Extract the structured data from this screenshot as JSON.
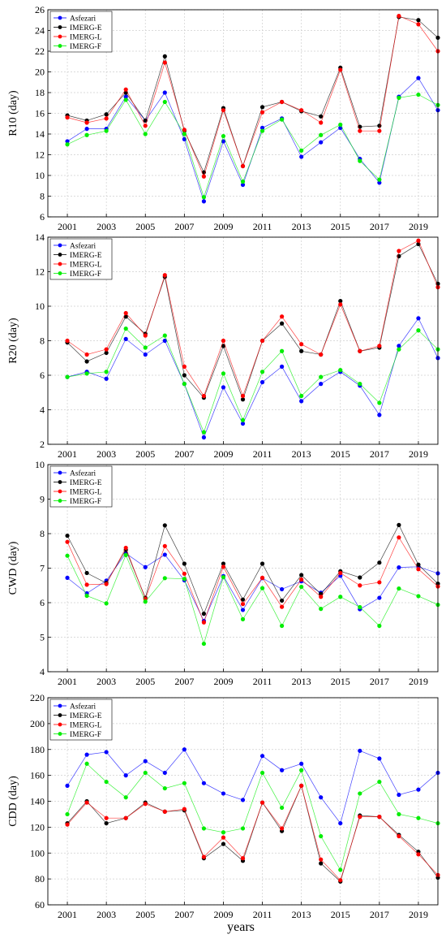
{
  "colors": {
    "Asfezari": "#0000ff",
    "IMERG-E": "#000000",
    "IMERG-L": "#ff0000",
    "IMERG-F": "#00ee00"
  },
  "xlabel": "years",
  "chart_data": [
    {
      "type": "line",
      "ylabel": "R10 (day)",
      "ylim": [
        6,
        26
      ],
      "yticks": [
        6,
        8,
        10,
        12,
        14,
        16,
        18,
        20,
        22,
        24,
        26
      ],
      "xlim": [
        2000,
        2020
      ],
      "xticks": [
        2001,
        2003,
        2005,
        2007,
        2009,
        2011,
        2013,
        2015,
        2017,
        2019
      ],
      "grid": true,
      "legend": "top-left",
      "x": [
        2001,
        2002,
        2003,
        2004,
        2005,
        2006,
        2007,
        2008,
        2009,
        2010,
        2011,
        2012,
        2013,
        2014,
        2015,
        2016,
        2017,
        2018,
        2019,
        2020
      ],
      "series": [
        {
          "name": "Asfezari",
          "values": [
            13.3,
            14.5,
            14.5,
            17.6,
            15.3,
            18.0,
            13.5,
            7.5,
            13.3,
            9.1,
            14.6,
            15.5,
            11.8,
            13.2,
            14.6,
            11.6,
            9.3,
            17.6,
            19.4,
            16.3
          ]
        },
        {
          "name": "IMERG-E",
          "values": [
            15.8,
            15.3,
            15.9,
            18.0,
            15.3,
            21.5,
            14.3,
            10.3,
            16.5,
            10.9,
            16.6,
            17.1,
            16.2,
            15.7,
            20.4,
            14.7,
            14.8,
            25.3,
            25.0,
            23.3
          ]
        },
        {
          "name": "IMERG-L",
          "values": [
            15.6,
            15.1,
            15.5,
            18.3,
            14.8,
            20.9,
            14.4,
            9.9,
            16.3,
            10.9,
            16.1,
            17.1,
            16.3,
            15.1,
            20.2,
            14.3,
            14.3,
            25.4,
            24.6,
            22.0
          ]
        },
        {
          "name": "IMERG-F",
          "values": [
            13.0,
            13.9,
            14.3,
            17.3,
            14.0,
            17.1,
            14.0,
            7.9,
            13.8,
            9.4,
            14.3,
            15.4,
            12.4,
            13.9,
            14.9,
            11.4,
            9.6,
            17.5,
            17.8,
            16.8
          ]
        }
      ]
    },
    {
      "type": "line",
      "ylabel": "R20 (day)",
      "ylim": [
        2,
        14
      ],
      "yticks": [
        2,
        4,
        6,
        8,
        10,
        12,
        14
      ],
      "xlim": [
        2000,
        2020
      ],
      "xticks": [
        2001,
        2003,
        2005,
        2007,
        2009,
        2011,
        2013,
        2015,
        2017,
        2019
      ],
      "grid": true,
      "legend": "top-left",
      "x": [
        2001,
        2002,
        2003,
        2004,
        2005,
        2006,
        2007,
        2008,
        2009,
        2010,
        2011,
        2012,
        2013,
        2014,
        2015,
        2016,
        2017,
        2018,
        2019,
        2020
      ],
      "series": [
        {
          "name": "Asfezari",
          "values": [
            5.9,
            6.2,
            5.8,
            8.1,
            7.2,
            8.0,
            5.5,
            2.4,
            5.3,
            3.2,
            5.6,
            6.5,
            4.5,
            5.5,
            6.2,
            5.4,
            3.7,
            7.7,
            9.3,
            7.0
          ]
        },
        {
          "name": "IMERG-E",
          "values": [
            7.9,
            6.8,
            7.3,
            9.4,
            8.4,
            11.7,
            6.0,
            4.7,
            7.7,
            4.6,
            8.0,
            9.0,
            7.4,
            7.2,
            10.3,
            7.4,
            7.6,
            12.9,
            13.6,
            11.3
          ]
        },
        {
          "name": "IMERG-L",
          "values": [
            8.0,
            7.2,
            7.5,
            9.6,
            8.3,
            11.8,
            6.5,
            4.8,
            8.0,
            4.8,
            8.0,
            9.4,
            7.8,
            7.2,
            10.1,
            7.4,
            7.7,
            13.2,
            13.8,
            11.1
          ]
        },
        {
          "name": "IMERG-F",
          "values": [
            5.9,
            6.1,
            6.2,
            8.7,
            7.6,
            8.3,
            5.5,
            2.7,
            6.1,
            3.4,
            6.2,
            7.4,
            4.8,
            5.9,
            6.3,
            5.5,
            4.4,
            7.5,
            8.6,
            7.5
          ]
        }
      ]
    },
    {
      "type": "line",
      "ylabel": "CWD (day)",
      "ylim": [
        4,
        10
      ],
      "yticks": [
        4,
        5,
        6,
        7,
        8,
        9,
        10
      ],
      "xlim": [
        2000,
        2020
      ],
      "xticks": [
        2001,
        2003,
        2005,
        2007,
        2009,
        2011,
        2013,
        2015,
        2017,
        2019
      ],
      "grid": true,
      "legend": "top-left",
      "x": [
        2001,
        2002,
        2003,
        2004,
        2005,
        2006,
        2007,
        2008,
        2009,
        2010,
        2011,
        2012,
        2013,
        2014,
        2015,
        2016,
        2017,
        2018,
        2019,
        2020
      ],
      "series": [
        {
          "name": "Asfezari",
          "values": [
            6.72,
            6.27,
            6.64,
            7.43,
            7.03,
            7.39,
            6.65,
            5.47,
            6.77,
            5.79,
            6.71,
            6.39,
            6.62,
            6.29,
            6.78,
            5.81,
            6.14,
            7.02,
            7.04,
            6.85
          ]
        },
        {
          "name": "IMERG-E",
          "values": [
            7.94,
            6.86,
            6.57,
            7.53,
            6.14,
            8.24,
            7.13,
            5.68,
            7.13,
            6.09,
            7.13,
            6.06,
            6.8,
            6.25,
            6.91,
            6.73,
            7.16,
            8.25,
            7.1,
            6.55
          ]
        },
        {
          "name": "IMERG-L",
          "values": [
            7.76,
            6.52,
            6.54,
            7.59,
            6.11,
            7.64,
            6.84,
            5.43,
            7.04,
            5.96,
            6.72,
            5.88,
            6.67,
            6.17,
            6.86,
            6.5,
            6.59,
            7.89,
            6.97,
            6.47
          ]
        },
        {
          "name": "IMERG-F",
          "values": [
            7.36,
            6.2,
            5.98,
            7.38,
            6.03,
            6.71,
            6.69,
            4.81,
            6.74,
            5.52,
            6.42,
            5.33,
            6.46,
            5.82,
            6.17,
            5.87,
            5.33,
            6.41,
            6.19,
            5.94
          ]
        }
      ]
    },
    {
      "type": "line",
      "ylabel": "CDD (day)",
      "ylim": [
        60,
        220
      ],
      "yticks": [
        60,
        80,
        100,
        120,
        140,
        160,
        180,
        200,
        220
      ],
      "xlim": [
        2000,
        2020
      ],
      "xticks": [
        2001,
        2003,
        2005,
        2007,
        2009,
        2011,
        2013,
        2015,
        2017,
        2019
      ],
      "grid": true,
      "legend": "top-left",
      "x": [
        2001,
        2002,
        2003,
        2004,
        2005,
        2006,
        2007,
        2008,
        2009,
        2010,
        2011,
        2012,
        2013,
        2014,
        2015,
        2016,
        2017,
        2018,
        2019,
        2020
      ],
      "series": [
        {
          "name": "Asfezari",
          "values": [
            152,
            176,
            178,
            160,
            171,
            162,
            180,
            154,
            146,
            141,
            175,
            164,
            169,
            143,
            123,
            179,
            173,
            145,
            149,
            162
          ]
        },
        {
          "name": "IMERG-E",
          "values": [
            123,
            140,
            123,
            127,
            139,
            132,
            133,
            96,
            107,
            94,
            139,
            117,
            152,
            92,
            78,
            129,
            128,
            114,
            101,
            81
          ]
        },
        {
          "name": "IMERG-L",
          "values": [
            122,
            139,
            127,
            127,
            138,
            132,
            134,
            97,
            112,
            96,
            139,
            119,
            152,
            95,
            79,
            128,
            128,
            113,
            99,
            83
          ]
        },
        {
          "name": "IMERG-F",
          "values": [
            130,
            169,
            155,
            143,
            162,
            150,
            154,
            119,
            116,
            119,
            162,
            135,
            164,
            113,
            87,
            146,
            155,
            130,
            127,
            123
          ]
        }
      ]
    }
  ]
}
